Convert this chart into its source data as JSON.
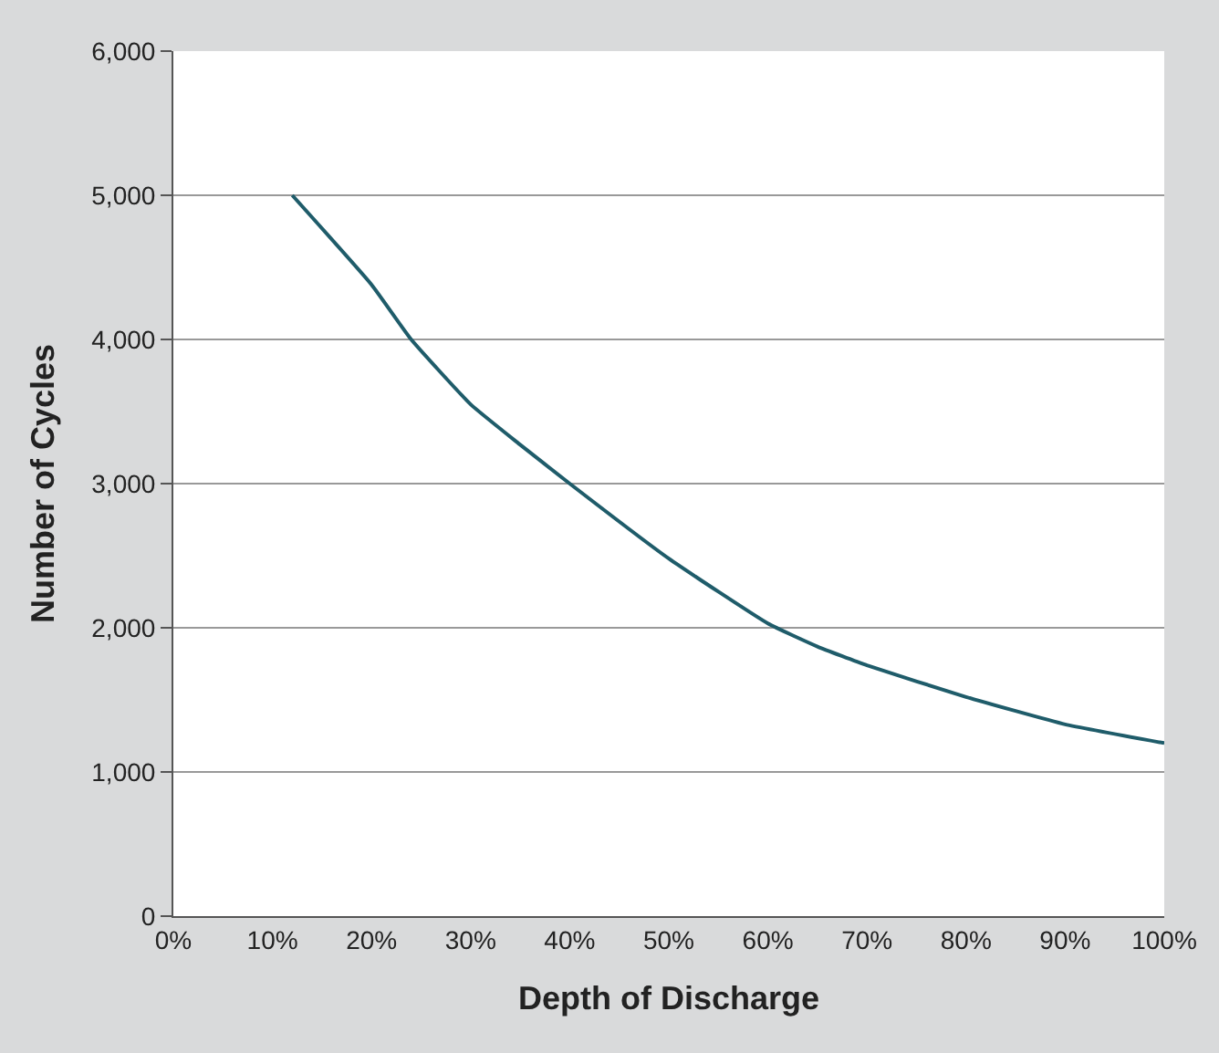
{
  "chart_data": {
    "type": "line",
    "xlabel": "Depth of Discharge",
    "ylabel": "Number of Cycles",
    "x": [
      12,
      20,
      24,
      30,
      35,
      40,
      50,
      60,
      65,
      70,
      80,
      90,
      100
    ],
    "series": [
      {
        "color": "#1f5c6a",
        "values": [
          5000,
          4380,
          4000,
          3550,
          3270,
          3000,
          2480,
          2030,
          1870,
          1740,
          1520,
          1330,
          1200
        ]
      }
    ],
    "xlim": [
      0,
      100
    ],
    "xticks": [
      {
        "value": 0,
        "label": "0%"
      },
      {
        "value": 10,
        "label": "10%"
      },
      {
        "value": 20,
        "label": "20%"
      },
      {
        "value": 30,
        "label": "30%"
      },
      {
        "value": 40,
        "label": "40%"
      },
      {
        "value": 50,
        "label": "50%"
      },
      {
        "value": 60,
        "label": "60%"
      },
      {
        "value": 70,
        "label": "70%"
      },
      {
        "value": 80,
        "label": "80%"
      },
      {
        "value": 90,
        "label": "90%"
      },
      {
        "value": 100,
        "label": "100%"
      }
    ],
    "ylim": [
      0,
      6000
    ],
    "yticks": [
      {
        "value": 0,
        "label": "0"
      },
      {
        "value": 1000,
        "label": "1,000"
      },
      {
        "value": 2000,
        "label": "2,000"
      },
      {
        "value": 3000,
        "label": "3,000"
      },
      {
        "value": 4000,
        "label": "4,000"
      },
      {
        "value": 5000,
        "label": "5,000"
      },
      {
        "value": 6000,
        "label": "6,000"
      }
    ],
    "grid": "y",
    "marker": "none",
    "line_style": "solid"
  }
}
